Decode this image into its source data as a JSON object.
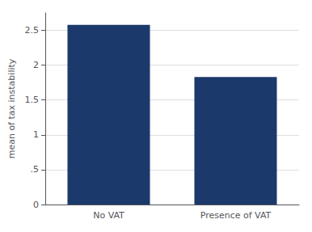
{
  "chart_data": {
    "type": "bar",
    "categories": [
      "No VAT",
      "Presence of VAT"
    ],
    "values": [
      2.58,
      1.83
    ],
    "color": "#1B3A6B",
    "ylabel": "mean of tax instability",
    "ylim": [
      0,
      2.75
    ],
    "yticks": [
      0,
      {
        "value": 0.5,
        "label": ".5"
      },
      1,
      1.5,
      2,
      2.5
    ],
    "grid": true
  }
}
